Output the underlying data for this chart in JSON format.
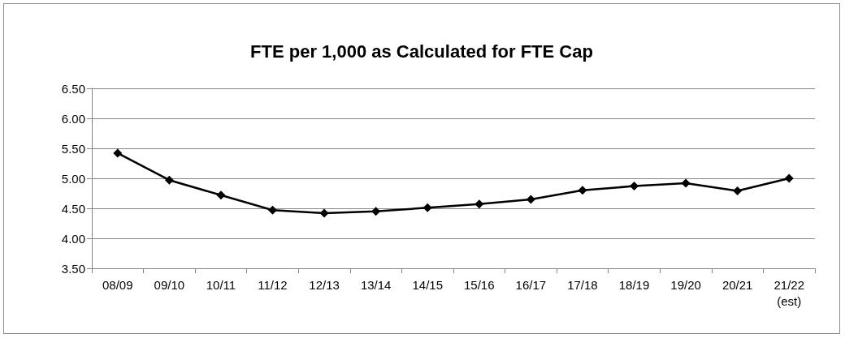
{
  "chart_data": {
    "type": "line",
    "title": "FTE per 1,000 as Calculated for FTE Cap",
    "categories": [
      "08/09",
      "09/10",
      "10/11",
      "11/12",
      "12/13",
      "13/14",
      "14/15",
      "15/16",
      "16/17",
      "17/18",
      "18/19",
      "19/20",
      "20/21",
      "21/22\n(est)"
    ],
    "series": [
      {
        "color": "#000000",
        "values": [
          5.42,
          4.97,
          4.72,
          4.47,
          4.42,
          4.45,
          4.51,
          4.57,
          4.65,
          4.8,
          4.87,
          4.92,
          4.79,
          5.0
        ]
      }
    ],
    "ylim": [
      3.5,
      6.5
    ],
    "yticks": [
      {
        "value": 3.5,
        "label": "3.50"
      },
      {
        "value": 4,
        "label": "4.00"
      },
      {
        "value": 4.5,
        "label": "4.50"
      },
      {
        "value": 5,
        "label": "5.00"
      },
      {
        "value": 5.5,
        "label": "5.50"
      },
      {
        "value": 6,
        "label": "6.00"
      },
      {
        "value": 6.5,
        "label": "6.50"
      }
    ],
    "grid": "y",
    "marker": "diamond",
    "line_style": "solid"
  }
}
